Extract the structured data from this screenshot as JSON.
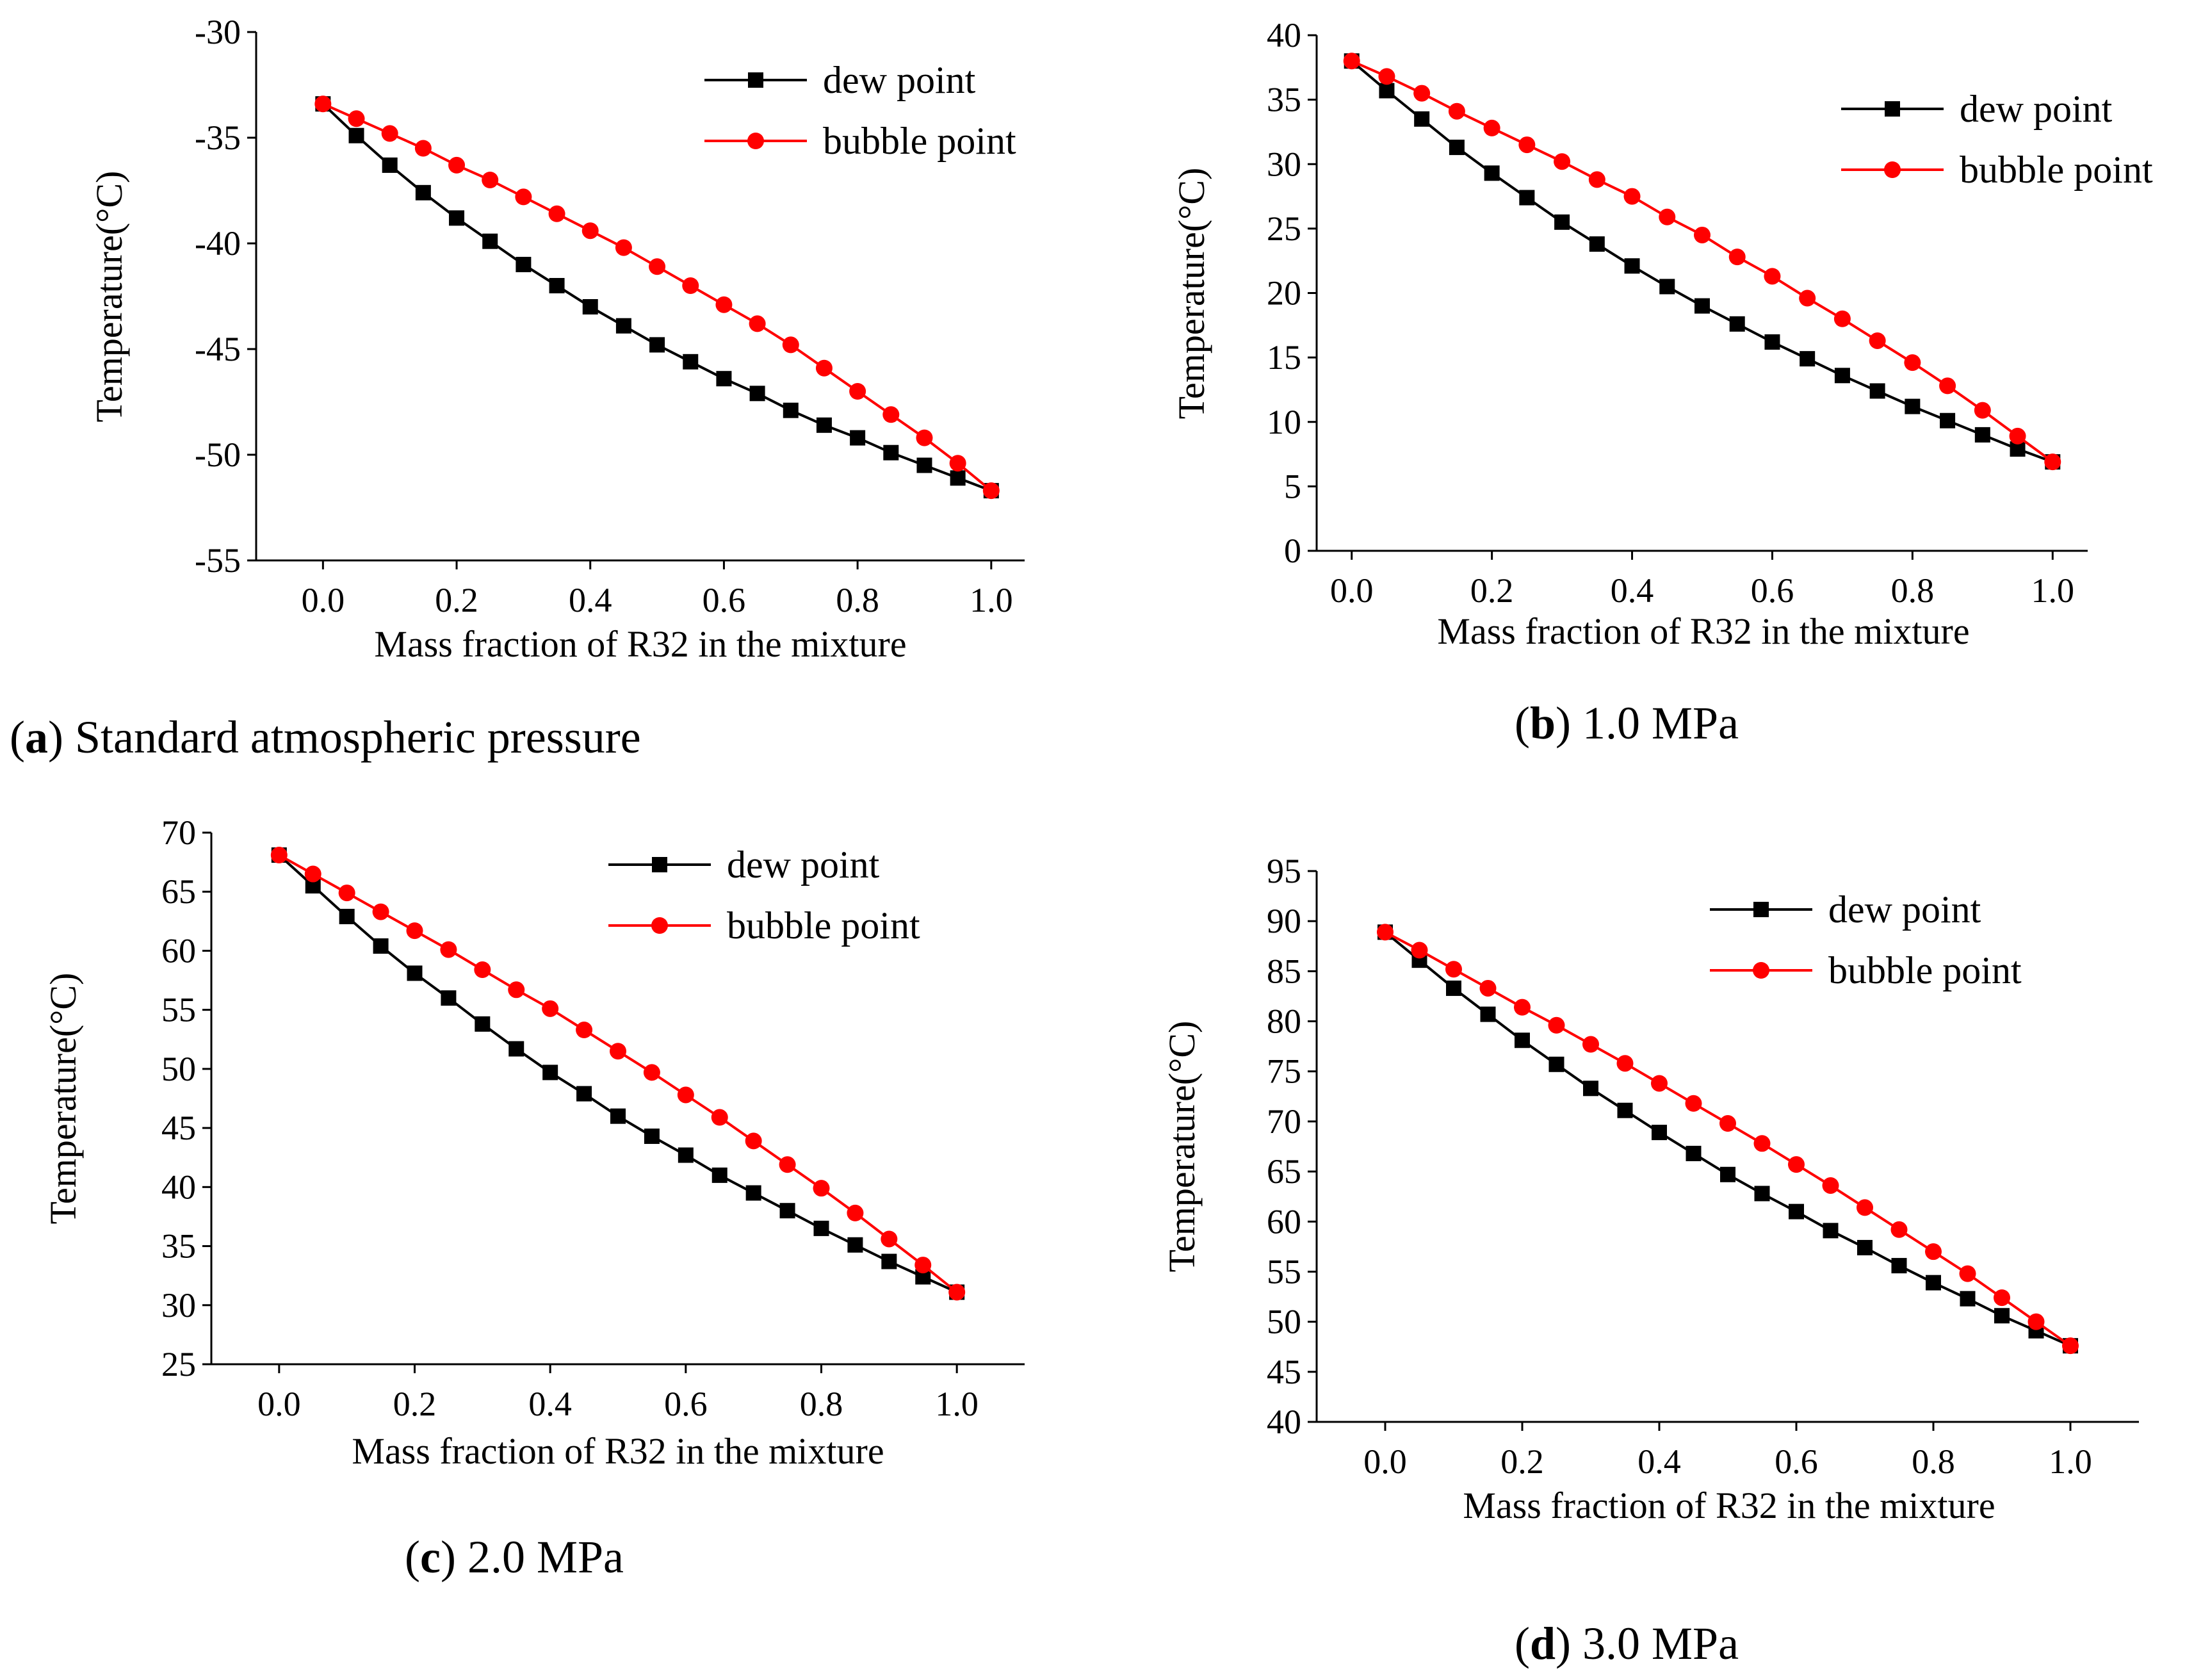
{
  "figure": {
    "colors": {
      "dew": "#000000",
      "bubble": "#ff0000",
      "axis": "#000000"
    },
    "marker_names": {
      "dew": "square-marker",
      "bubble": "circle-marker"
    }
  },
  "chart_data": [
    {
      "id": "a",
      "type": "line",
      "caption_letter": "a",
      "caption_text": "Standard atmospheric pressure",
      "xlabel": "Mass fraction of R32 in the mixture",
      "ylabel": "Temperature(°C)",
      "xlim": [
        -0.1,
        1.05
      ],
      "ylim": [
        -55,
        -30
      ],
      "xticks": [
        0.0,
        0.2,
        0.4,
        0.6,
        0.8,
        1.0
      ],
      "xtick_labels": [
        "0.0",
        "0.2",
        "0.4",
        "0.6",
        "0.8",
        "1.0"
      ],
      "yticks": [
        -55,
        -50,
        -45,
        -40,
        -35,
        -30
      ],
      "ytick_labels": [
        "-55",
        "-50",
        "-45",
        "-40",
        "-35",
        "-30"
      ],
      "x": [
        0.0,
        0.05,
        0.1,
        0.15,
        0.2,
        0.25,
        0.3,
        0.35,
        0.4,
        0.45,
        0.5,
        0.55,
        0.6,
        0.65,
        0.7,
        0.75,
        0.8,
        0.85,
        0.9,
        0.95,
        1.0
      ],
      "legend_position": "top-right",
      "series": [
        {
          "name": "dew point",
          "marker": "square",
          "values": [
            -33.4,
            -34.9,
            -36.3,
            -37.6,
            -38.8,
            -39.9,
            -41.0,
            -42.0,
            -43.0,
            -43.9,
            -44.8,
            -45.6,
            -46.4,
            -47.1,
            -47.9,
            -48.6,
            -49.2,
            -49.9,
            -50.5,
            -51.1,
            -51.7
          ]
        },
        {
          "name": "bubble point",
          "marker": "circle",
          "values": [
            -33.4,
            -34.1,
            -34.8,
            -35.5,
            -36.3,
            -37.0,
            -37.8,
            -38.6,
            -39.4,
            -40.2,
            -41.1,
            -42.0,
            -42.9,
            -43.8,
            -44.8,
            -45.9,
            -47.0,
            -48.1,
            -49.2,
            -50.4,
            -51.7
          ]
        }
      ]
    },
    {
      "id": "b",
      "type": "line",
      "caption_letter": "b",
      "caption_text": "1.0 MPa",
      "xlabel": "Mass fraction of R32 in the mixture",
      "ylabel": "Temperature(°C)",
      "xlim": [
        -0.05,
        1.05
      ],
      "ylim": [
        0,
        40
      ],
      "xticks": [
        0.0,
        0.2,
        0.4,
        0.6,
        0.8,
        1.0
      ],
      "xtick_labels": [
        "0.0",
        "0.2",
        "0.4",
        "0.6",
        "0.8",
        "1.0"
      ],
      "yticks": [
        0,
        5,
        10,
        15,
        20,
        25,
        30,
        35,
        40
      ],
      "ytick_labels": [
        "0",
        "5",
        "10",
        "15",
        "20",
        "25",
        "30",
        "35",
        "40"
      ],
      "x": [
        0.0,
        0.05,
        0.1,
        0.15,
        0.2,
        0.25,
        0.3,
        0.35,
        0.4,
        0.45,
        0.5,
        0.55,
        0.6,
        0.65,
        0.7,
        0.75,
        0.8,
        0.85,
        0.9,
        0.95,
        1.0
      ],
      "legend_position": "top-right",
      "series": [
        {
          "name": "dew point",
          "marker": "square",
          "values": [
            38.0,
            35.7,
            33.5,
            31.3,
            29.3,
            27.4,
            25.5,
            23.8,
            22.1,
            20.5,
            19.0,
            17.6,
            16.2,
            14.9,
            13.6,
            12.4,
            11.2,
            10.1,
            9.0,
            7.9,
            6.9
          ]
        },
        {
          "name": "bubble point",
          "marker": "circle",
          "values": [
            38.0,
            36.8,
            35.5,
            34.1,
            32.8,
            31.5,
            30.2,
            28.8,
            27.5,
            25.9,
            24.5,
            22.8,
            21.3,
            19.6,
            18.0,
            16.3,
            14.6,
            12.8,
            10.9,
            8.9,
            6.9
          ]
        }
      ]
    },
    {
      "id": "c",
      "type": "line",
      "caption_letter": "c",
      "caption_text": "2.0 MPa",
      "xlabel": "Mass fraction of R32 in the mixture",
      "ylabel": "Temperature(°C)",
      "xlim": [
        -0.1,
        1.1
      ],
      "ylim": [
        25,
        70
      ],
      "xticks": [
        0.0,
        0.2,
        0.4,
        0.6,
        0.8,
        1.0
      ],
      "xtick_labels": [
        "0.0",
        "0.2",
        "0.4",
        "0.6",
        "0.8",
        "1.0"
      ],
      "yticks": [
        25,
        30,
        35,
        40,
        45,
        50,
        55,
        60,
        65,
        70
      ],
      "ytick_labels": [
        "25",
        "30",
        "35",
        "40",
        "45",
        "50",
        "55",
        "60",
        "65",
        "70"
      ],
      "x": [
        0.0,
        0.05,
        0.1,
        0.15,
        0.2,
        0.25,
        0.3,
        0.35,
        0.4,
        0.45,
        0.5,
        0.55,
        0.6,
        0.65,
        0.7,
        0.75,
        0.8,
        0.85,
        0.9,
        0.95,
        1.0
      ],
      "legend_position": "top-right",
      "series": [
        {
          "name": "dew point",
          "marker": "square",
          "values": [
            68.1,
            65.5,
            62.9,
            60.4,
            58.1,
            56.0,
            53.8,
            51.7,
            49.7,
            47.9,
            46.0,
            44.3,
            42.7,
            41.0,
            39.5,
            38.0,
            36.5,
            35.1,
            33.7,
            32.4,
            31.1
          ]
        },
        {
          "name": "bubble point",
          "marker": "circle",
          "values": [
            68.1,
            66.5,
            64.9,
            63.3,
            61.7,
            60.1,
            58.4,
            56.7,
            55.1,
            53.3,
            51.5,
            49.7,
            47.8,
            45.9,
            43.9,
            41.9,
            39.9,
            37.8,
            35.6,
            33.4,
            31.1
          ]
        }
      ]
    },
    {
      "id": "d",
      "type": "line",
      "caption_letter": "d",
      "caption_text": "3.0 MPa",
      "xlabel": "Mass fraction of R32 in the mixture",
      "ylabel": "Temperature(°C)",
      "xlim": [
        -0.1,
        1.1
      ],
      "ylim": [
        40,
        95
      ],
      "xticks": [
        0.0,
        0.2,
        0.4,
        0.6,
        0.8,
        1.0
      ],
      "xtick_labels": [
        "0.0",
        "0.2",
        "0.4",
        "0.6",
        "0.8",
        "1.0"
      ],
      "yticks": [
        40,
        45,
        50,
        55,
        60,
        65,
        70,
        75,
        80,
        85,
        90,
        95
      ],
      "ytick_labels": [
        "40",
        "45",
        "50",
        "55",
        "60",
        "65",
        "70",
        "75",
        "80",
        "85",
        "90",
        "95"
      ],
      "x": [
        0.0,
        0.05,
        0.1,
        0.15,
        0.2,
        0.25,
        0.3,
        0.35,
        0.4,
        0.45,
        0.5,
        0.55,
        0.6,
        0.65,
        0.7,
        0.75,
        0.8,
        0.85,
        0.9,
        0.95,
        1.0
      ],
      "legend_position": "top-right",
      "series": [
        {
          "name": "dew point",
          "marker": "square",
          "values": [
            88.9,
            86.1,
            83.3,
            80.7,
            78.1,
            75.7,
            73.3,
            71.1,
            68.9,
            66.8,
            64.7,
            62.8,
            61.0,
            59.1,
            57.4,
            55.6,
            53.9,
            52.3,
            50.6,
            49.1,
            47.6
          ]
        },
        {
          "name": "bubble point",
          "marker": "circle",
          "values": [
            88.9,
            87.1,
            85.2,
            83.3,
            81.4,
            79.6,
            77.7,
            75.8,
            73.8,
            71.8,
            69.8,
            67.8,
            65.7,
            63.6,
            61.4,
            59.2,
            57.0,
            54.8,
            52.4,
            50.0,
            47.6
          ]
        }
      ]
    }
  ]
}
